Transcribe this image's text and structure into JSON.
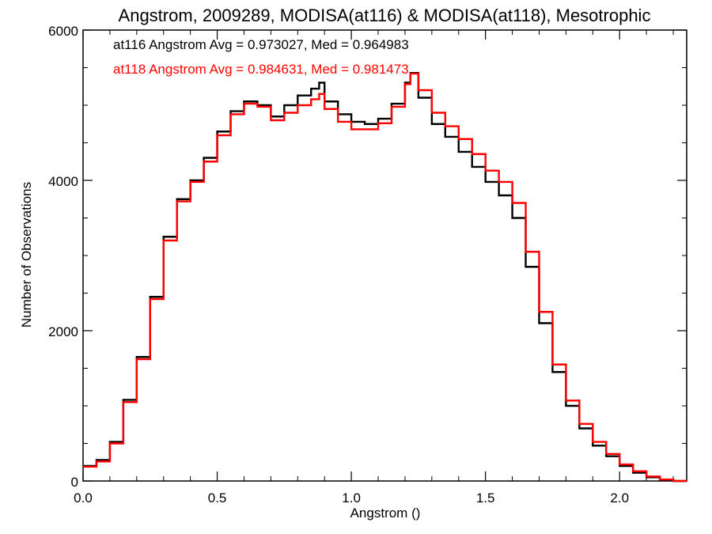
{
  "chart_data": {
    "type": "line",
    "title": "Angstrom, 2009289, MODISA(at116) & MODISA(at118), Mesotrophic",
    "xlabel": "Angstrom ()",
    "ylabel": "Number of Observations",
    "xlim": [
      0.0,
      2.25
    ],
    "ylim": [
      0,
      6000
    ],
    "x_ticks": [
      {
        "value": 0.0,
        "label": "0.0"
      },
      {
        "value": 0.5,
        "label": "0.5"
      },
      {
        "value": 1.0,
        "label": "1.0"
      },
      {
        "value": 1.5,
        "label": "1.5"
      },
      {
        "value": 2.0,
        "label": "2.0"
      }
    ],
    "y_ticks": [
      {
        "value": 0,
        "label": "0"
      },
      {
        "value": 2000,
        "label": "2000"
      },
      {
        "value": 4000,
        "label": "4000"
      },
      {
        "value": 6000,
        "label": "6000"
      }
    ],
    "step_style": "histogram",
    "series": [
      {
        "name": "at116",
        "color": "#000000",
        "annotation": "at116 Angstrom Avg = 0.973027, Med = 0.964983",
        "x": [
          0.0,
          0.05,
          0.1,
          0.15,
          0.2,
          0.25,
          0.3,
          0.35,
          0.4,
          0.45,
          0.5,
          0.55,
          0.6,
          0.65,
          0.7,
          0.75,
          0.8,
          0.85,
          0.88,
          0.9,
          0.95,
          1.0,
          1.05,
          1.1,
          1.15,
          1.2,
          1.22,
          1.25,
          1.3,
          1.35,
          1.4,
          1.45,
          1.5,
          1.55,
          1.6,
          1.65,
          1.7,
          1.75,
          1.8,
          1.85,
          1.9,
          1.95,
          2.0,
          2.05,
          2.1,
          2.15,
          2.2,
          2.25
        ],
        "y": [
          200,
          280,
          520,
          1080,
          1650,
          2450,
          3250,
          3750,
          4000,
          4300,
          4650,
          4920,
          5050,
          5000,
          4850,
          5000,
          5130,
          5220,
          5300,
          5050,
          4880,
          4780,
          4750,
          4820,
          5020,
          5300,
          5430,
          5100,
          4750,
          4580,
          4380,
          4180,
          3980,
          3800,
          3500,
          2850,
          2100,
          1450,
          1000,
          700,
          470,
          330,
          200,
          110,
          50,
          10,
          0,
          0
        ]
      },
      {
        "name": "at118",
        "color": "#ff0000",
        "annotation": "at118 Angstrom Avg = 0.984631, Med = 0.981473",
        "x": [
          0.0,
          0.05,
          0.1,
          0.15,
          0.2,
          0.25,
          0.3,
          0.35,
          0.4,
          0.45,
          0.5,
          0.55,
          0.6,
          0.65,
          0.7,
          0.75,
          0.8,
          0.85,
          0.88,
          0.9,
          0.95,
          1.0,
          1.05,
          1.1,
          1.15,
          1.2,
          1.22,
          1.25,
          1.3,
          1.35,
          1.4,
          1.45,
          1.5,
          1.55,
          1.6,
          1.65,
          1.7,
          1.75,
          1.8,
          1.85,
          1.9,
          1.95,
          2.0,
          2.05,
          2.1,
          2.15,
          2.2,
          2.25
        ],
        "y": [
          190,
          260,
          500,
          1050,
          1620,
          2420,
          3200,
          3720,
          3980,
          4250,
          4600,
          4880,
          5020,
          4980,
          4800,
          4900,
          5000,
          5080,
          5150,
          4950,
          4780,
          4680,
          4680,
          4760,
          4980,
          5280,
          5420,
          5200,
          4900,
          4720,
          4550,
          4350,
          4130,
          3980,
          3700,
          3050,
          2250,
          1550,
          1070,
          760,
          520,
          360,
          220,
          130,
          60,
          20,
          0,
          0
        ]
      }
    ]
  }
}
